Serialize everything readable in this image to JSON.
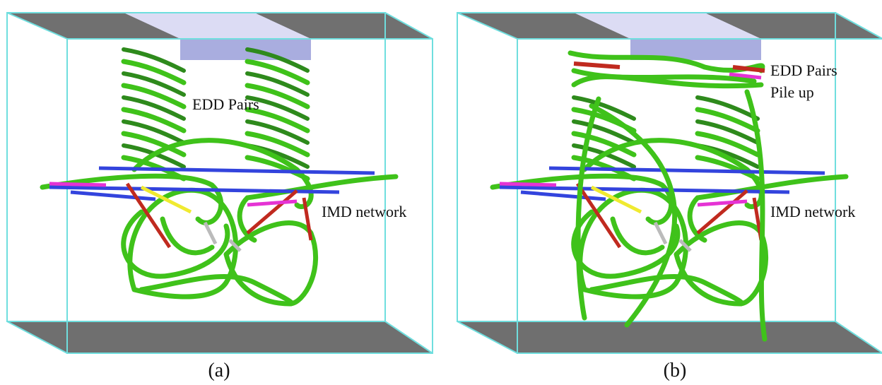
{
  "panels": [
    {
      "labels": [
        "EDD Pairs",
        "IMD network"
      ],
      "caption": "(a)"
    },
    {
      "labels": [
        "EDD Pairs",
        "Pile up",
        "IMD network"
      ],
      "caption": "(b)"
    }
  ]
}
